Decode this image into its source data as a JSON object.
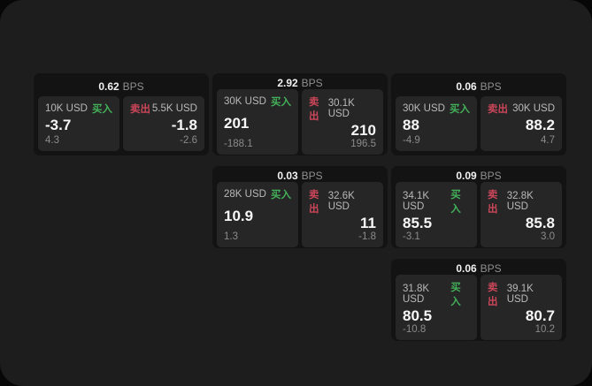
{
  "labels": {
    "buy": "买入",
    "sell": "卖出",
    "bps_unit": "BPS"
  },
  "colors": {
    "buy": "#43b159",
    "sell": "#cb4659",
    "surface": "#1d1d1d",
    "card": "#131313",
    "subcard": "#262626"
  },
  "cards": [
    {
      "bps": "0.62",
      "col": 1,
      "row": 1,
      "buy": {
        "amount": "10K USD",
        "value": "-3.7",
        "delta": "4.3"
      },
      "sell": {
        "amount": "5.5K USD",
        "value": "-1.8",
        "delta": "-2.6"
      }
    },
    {
      "bps": "2.92",
      "col": 2,
      "row": 1,
      "buy": {
        "amount": "30K USD",
        "value": "201",
        "delta": "-188.1"
      },
      "sell": {
        "amount": "30.1K USD",
        "value": "210",
        "delta": "196.5"
      }
    },
    {
      "bps": "0.06",
      "col": 3,
      "row": 1,
      "buy": {
        "amount": "30K USD",
        "value": "88",
        "delta": "-4.9"
      },
      "sell": {
        "amount": "30K USD",
        "value": "88.2",
        "delta": "4.7"
      }
    },
    {
      "bps": "0.03",
      "col": 2,
      "row": 2,
      "buy": {
        "amount": "28K USD",
        "value": "10.9",
        "delta": "1.3"
      },
      "sell": {
        "amount": "32.6K USD",
        "value": "11",
        "delta": "-1.8"
      }
    },
    {
      "bps": "0.09",
      "col": 3,
      "row": 2,
      "buy": {
        "amount": "34.1K USD",
        "value": "85.5",
        "delta": "-3.1"
      },
      "sell": {
        "amount": "32.8K USD",
        "value": "85.8",
        "delta": "3.0"
      }
    },
    {
      "bps": "0.06",
      "col": 3,
      "row": 3,
      "buy": {
        "amount": "31.8K USD",
        "value": "80.5",
        "delta": "-10.8"
      },
      "sell": {
        "amount": "39.1K USD",
        "value": "80.7",
        "delta": "10.2"
      }
    }
  ]
}
